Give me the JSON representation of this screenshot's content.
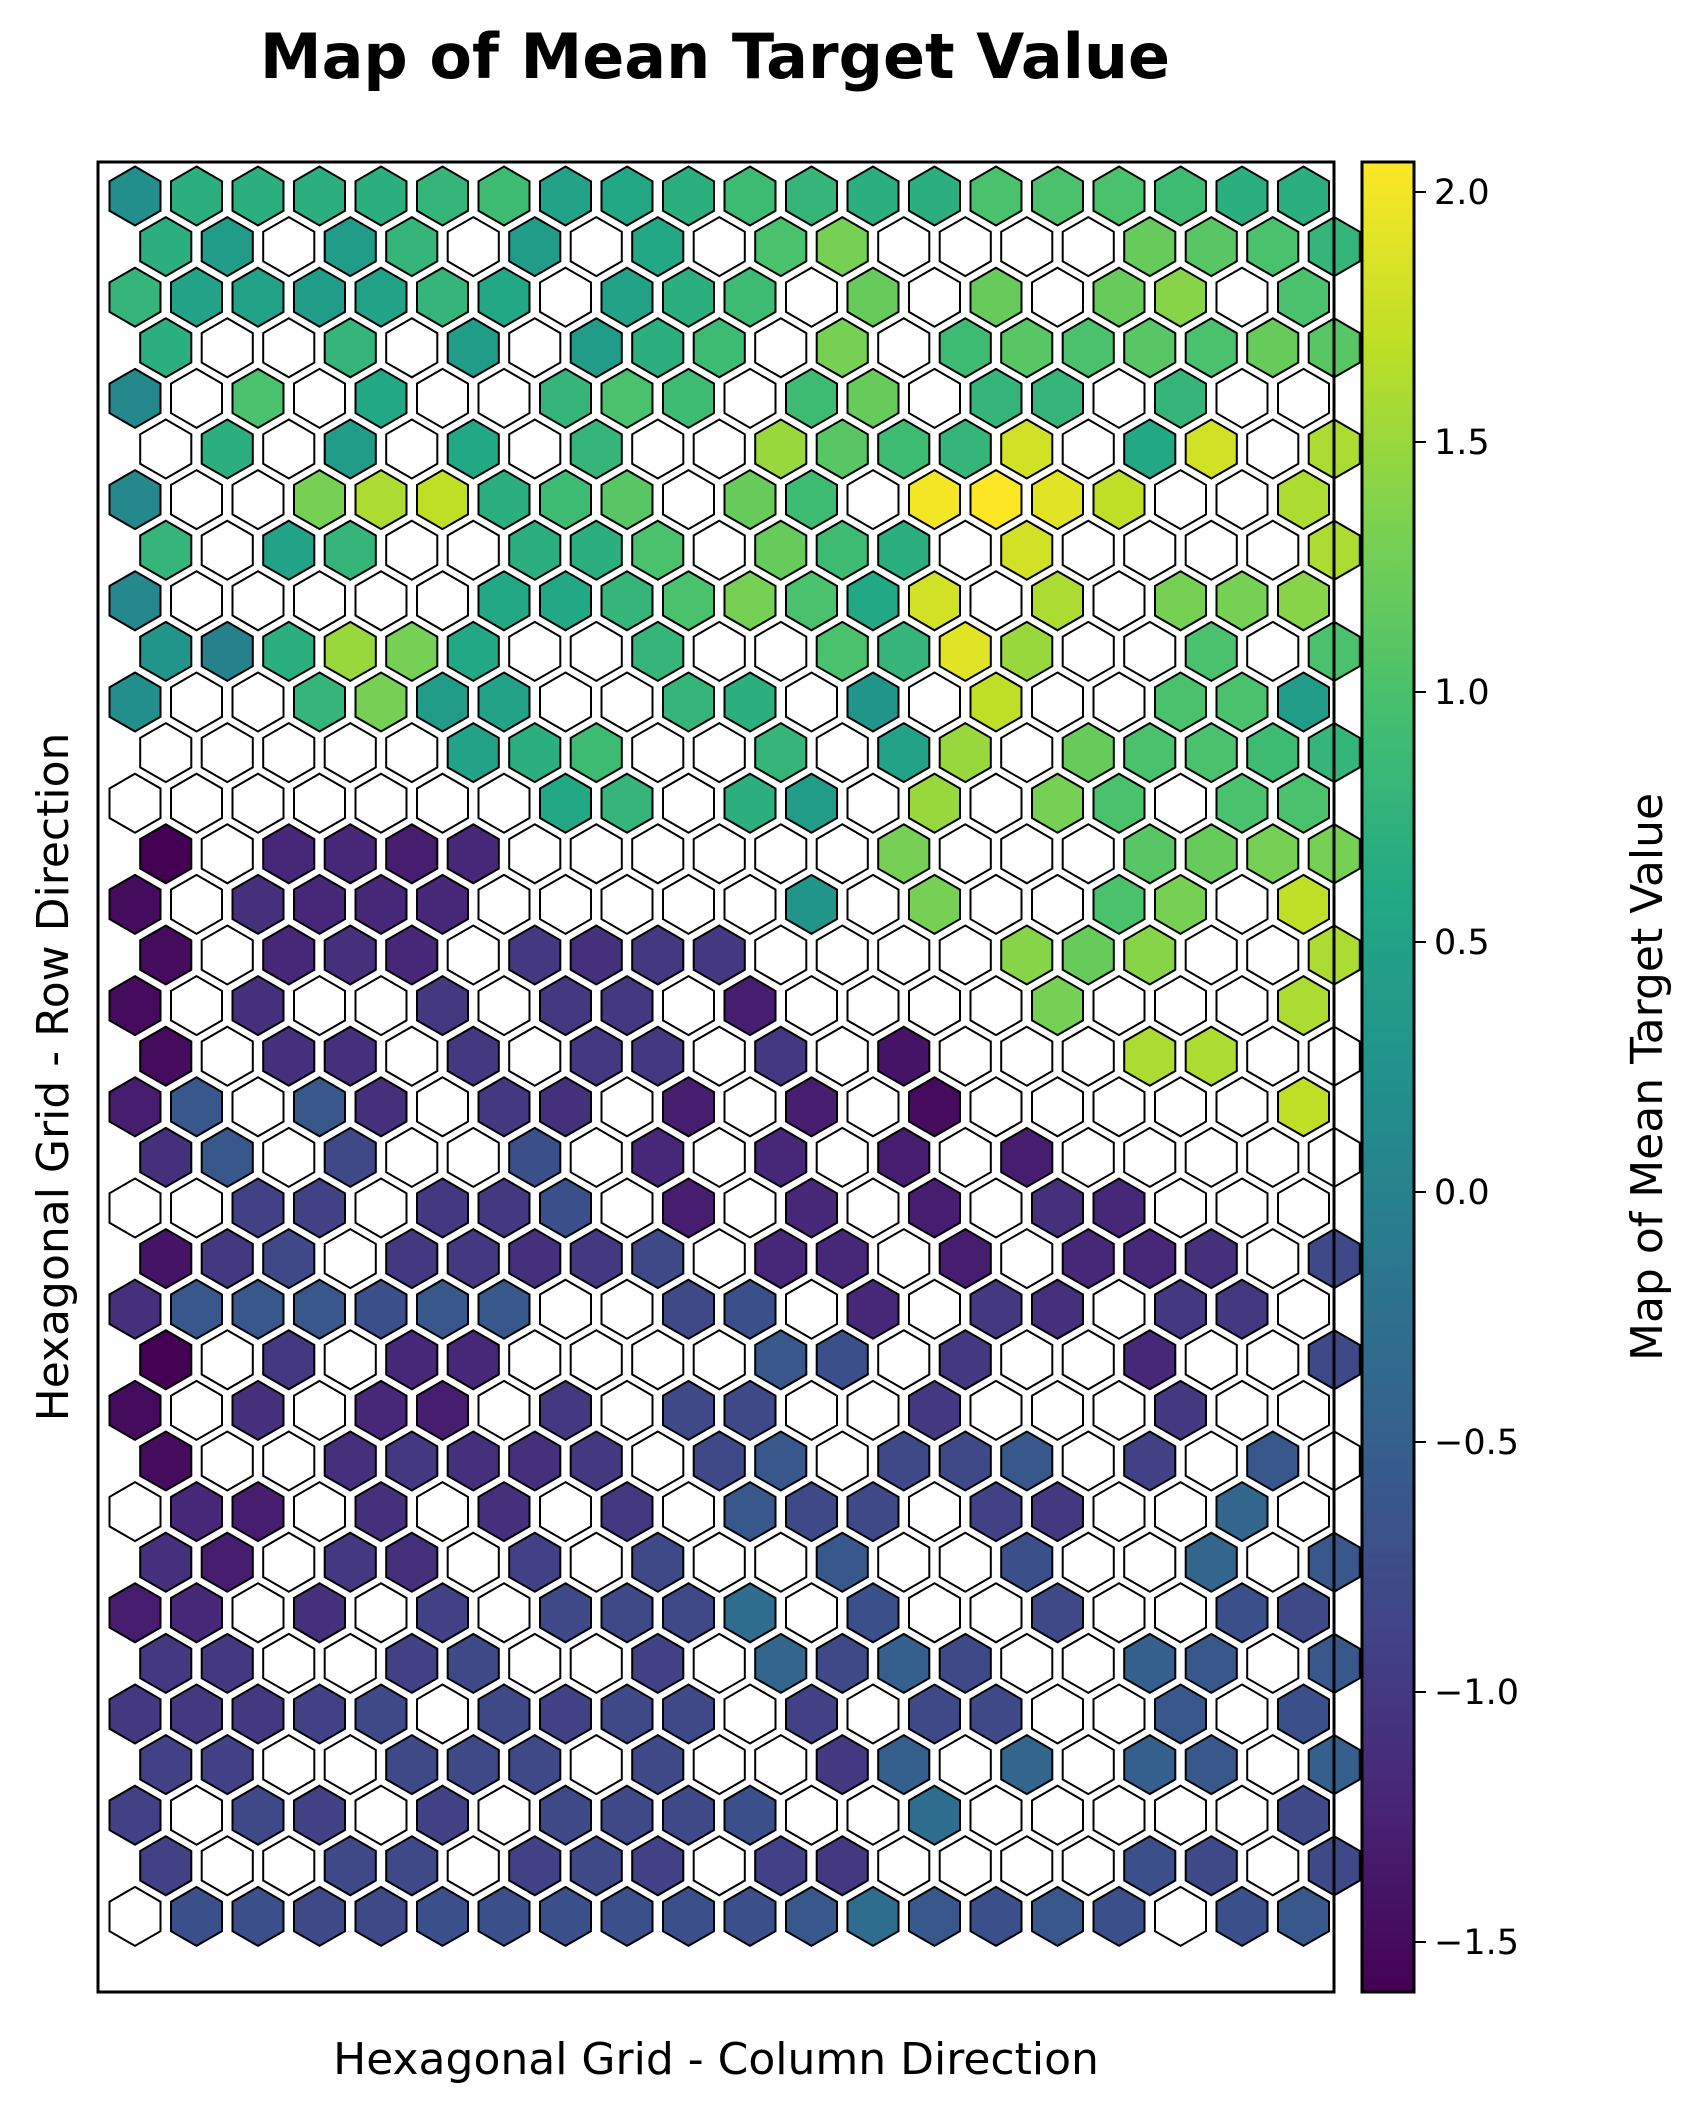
{
  "chart_data": {
    "type": "heatmap",
    "grid": "hexagonal",
    "title": "Map of Mean Target Value",
    "xlabel": "Hexagonal Grid - Column Direction",
    "ylabel": "Hexagonal Grid - Row Direction",
    "colorbar": {
      "label": "Map of Mean Target Value",
      "colormap": "viridis",
      "vmin": -1.6,
      "vmax": 2.06,
      "ticks": [
        -1.5,
        -1.0,
        -0.5,
        0.0,
        0.5,
        1.0,
        1.5,
        2.0
      ],
      "tick_labels": [
        "−1.5",
        "−1.0",
        "−0.5",
        "0.0",
        "0.5",
        "1.0",
        "1.5",
        "2.0"
      ]
    },
    "columns": 20,
    "row_legend": "Rows listed top to bottom, left to right; null = empty (white) cell; odd rows are offset half a cell to the right",
    "rows": [
      [
        0.2,
        0.7,
        0.7,
        0.7,
        0.7,
        0.8,
        0.9,
        0.5,
        0.6,
        0.7,
        0.9,
        0.8,
        0.7,
        0.7,
        1.0,
        1.0,
        1.0,
        0.9,
        0.7,
        0.7
      ],
      [
        0.7,
        0.4,
        null,
        0.4,
        0.8,
        null,
        0.4,
        null,
        0.6,
        null,
        1.0,
        1.3,
        null,
        null,
        null,
        null,
        1.2,
        1.1,
        1.0,
        0.8
      ],
      [
        0.8,
        0.5,
        0.5,
        0.4,
        0.5,
        0.8,
        0.6,
        null,
        0.5,
        0.7,
        0.9,
        null,
        1.2,
        null,
        1.2,
        null,
        1.2,
        1.4,
        null,
        1.0
      ],
      [
        0.7,
        null,
        null,
        0.8,
        null,
        0.4,
        null,
        0.4,
        0.7,
        0.9,
        null,
        1.3,
        null,
        0.9,
        1.1,
        1.0,
        1.1,
        1.0,
        1.2,
        1.1
      ],
      [
        0.1,
        null,
        1.0,
        null,
        0.6,
        null,
        null,
        0.8,
        1.0,
        0.9,
        null,
        0.9,
        1.2,
        null,
        0.8,
        0.8,
        null,
        0.8,
        null,
        null
      ],
      [
        null,
        0.7,
        null,
        0.4,
        null,
        0.6,
        null,
        0.8,
        null,
        null,
        1.5,
        1.1,
        0.9,
        0.8,
        1.8,
        null,
        0.6,
        1.8,
        null,
        1.6
      ],
      [
        0.1,
        null,
        null,
        1.3,
        1.6,
        1.7,
        0.7,
        0.9,
        1.1,
        null,
        1.2,
        0.9,
        null,
        2.0,
        2.1,
        1.9,
        1.7,
        null,
        null,
        1.6
      ],
      [
        0.8,
        null,
        0.5,
        0.8,
        null,
        null,
        0.7,
        0.7,
        1.0,
        null,
        1.2,
        0.9,
        0.7,
        null,
        1.8,
        null,
        null,
        null,
        null,
        1.6
      ],
      [
        0.1,
        null,
        null,
        null,
        null,
        null,
        0.6,
        0.6,
        0.8,
        1.0,
        1.3,
        1.0,
        0.6,
        1.8,
        null,
        1.6,
        null,
        1.3,
        1.3,
        1.4
      ],
      [
        0.3,
        0.0,
        0.7,
        1.5,
        1.3,
        0.6,
        null,
        null,
        0.8,
        null,
        null,
        1.0,
        0.8,
        1.9,
        1.5,
        null,
        null,
        1.0,
        null,
        1.0
      ],
      [
        0.2,
        null,
        null,
        0.8,
        1.3,
        0.4,
        0.5,
        null,
        null,
        0.8,
        0.7,
        null,
        0.3,
        null,
        1.7,
        null,
        null,
        1.0,
        1.0,
        0.4
      ],
      [
        null,
        null,
        null,
        null,
        null,
        0.5,
        0.7,
        0.9,
        null,
        null,
        0.8,
        null,
        0.5,
        1.5,
        null,
        1.2,
        1.0,
        1.0,
        0.9,
        0.8
      ],
      [
        null,
        null,
        null,
        null,
        null,
        null,
        null,
        0.6,
        0.8,
        null,
        0.7,
        0.4,
        null,
        1.5,
        null,
        1.3,
        1.0,
        null,
        1.0,
        1.0
      ],
      [
        -1.6,
        null,
        -1.2,
        -1.2,
        -1.3,
        -1.2,
        null,
        null,
        null,
        null,
        null,
        null,
        1.3,
        null,
        null,
        null,
        1.1,
        1.2,
        1.3,
        1.3
      ],
      [
        -1.5,
        null,
        -1.1,
        -1.2,
        -1.2,
        -1.2,
        null,
        null,
        null,
        null,
        null,
        0.3,
        null,
        1.3,
        null,
        null,
        1.0,
        1.3,
        null,
        1.7
      ],
      [
        -1.5,
        null,
        -1.2,
        -1.1,
        -1.2,
        null,
        -1.0,
        -1.1,
        -1.0,
        -1.0,
        null,
        null,
        null,
        null,
        1.4,
        1.2,
        1.4,
        null,
        null,
        1.6
      ],
      [
        -1.5,
        null,
        -1.1,
        null,
        null,
        -1.0,
        null,
        -1.0,
        -1.0,
        null,
        -1.3,
        null,
        null,
        null,
        null,
        1.3,
        null,
        null,
        null,
        1.6
      ],
      [
        -1.5,
        null,
        -1.1,
        -1.1,
        null,
        -1.0,
        null,
        -1.0,
        -1.0,
        null,
        -1.0,
        null,
        -1.4,
        null,
        null,
        null,
        1.6,
        1.6,
        null,
        null
      ],
      [
        -1.3,
        -0.6,
        null,
        -0.6,
        -1.1,
        null,
        -1.0,
        -1.1,
        null,
        -1.3,
        null,
        -1.3,
        null,
        -1.5,
        null,
        null,
        null,
        null,
        null,
        1.7
      ],
      [
        -1.1,
        -0.6,
        null,
        -0.8,
        null,
        null,
        -0.7,
        null,
        -1.2,
        null,
        -1.2,
        null,
        -1.3,
        null,
        -1.3,
        null,
        null,
        null,
        null,
        null
      ],
      [
        null,
        null,
        -0.9,
        -0.9,
        null,
        -1.0,
        -1.0,
        -0.7,
        null,
        -1.3,
        null,
        -1.2,
        null,
        -1.3,
        null,
        -1.1,
        -1.2,
        null,
        null,
        null
      ],
      [
        -1.4,
        -1.0,
        -0.8,
        null,
        -1.0,
        -1.0,
        -1.1,
        -1.0,
        -0.8,
        null,
        -1.2,
        -1.2,
        null,
        -1.3,
        null,
        -1.2,
        -1.2,
        -1.1,
        null,
        -0.8
      ],
      [
        -1.1,
        -0.6,
        -0.6,
        -0.6,
        -0.7,
        -0.6,
        -0.6,
        null,
        null,
        -0.8,
        -0.7,
        null,
        -1.2,
        null,
        -1.0,
        -1.1,
        null,
        -1.0,
        -1.0,
        null
      ],
      [
        -1.6,
        null,
        -1.0,
        null,
        -1.2,
        -1.2,
        null,
        null,
        null,
        null,
        -0.6,
        -0.7,
        null,
        -1.0,
        null,
        null,
        -1.2,
        null,
        null,
        -0.8
      ],
      [
        -1.5,
        null,
        -1.1,
        null,
        -1.2,
        -1.3,
        null,
        -1.0,
        null,
        -0.8,
        -0.8,
        null,
        null,
        -1.0,
        null,
        null,
        null,
        -1.0,
        null,
        null
      ],
      [
        -1.5,
        null,
        null,
        -1.1,
        -1.0,
        -1.1,
        -1.1,
        -1.0,
        null,
        -0.8,
        -0.6,
        null,
        -0.8,
        -0.8,
        -0.6,
        null,
        -0.9,
        null,
        -0.6,
        null
      ],
      [
        null,
        -1.2,
        -1.3,
        null,
        -1.1,
        null,
        -1.1,
        null,
        -1.0,
        null,
        -0.6,
        -0.8,
        -0.8,
        null,
        -0.9,
        -1.0,
        null,
        null,
        -0.4,
        null
      ],
      [
        -1.1,
        -1.3,
        null,
        -1.0,
        -1.1,
        null,
        -0.9,
        null,
        -0.8,
        null,
        null,
        -0.6,
        null,
        null,
        -0.7,
        null,
        null,
        -0.4,
        null,
        -0.6
      ],
      [
        -1.3,
        -1.2,
        null,
        -1.1,
        null,
        -0.9,
        null,
        -0.8,
        -0.8,
        -0.8,
        -0.3,
        null,
        -0.7,
        null,
        null,
        -0.8,
        null,
        null,
        -0.7,
        -0.8
      ],
      [
        -1.0,
        -1.0,
        null,
        null,
        -0.9,
        -0.8,
        null,
        null,
        -0.9,
        null,
        -0.4,
        -0.8,
        -0.5,
        -0.8,
        null,
        null,
        -0.5,
        -0.6,
        null,
        -0.6
      ],
      [
        -1.0,
        -1.0,
        -1.0,
        -0.9,
        -0.8,
        null,
        -0.8,
        -0.9,
        -0.8,
        -0.8,
        null,
        -0.9,
        null,
        -0.8,
        -0.8,
        null,
        null,
        -0.6,
        null,
        -0.7
      ],
      [
        -0.9,
        -0.9,
        null,
        null,
        -0.8,
        -0.8,
        -0.8,
        null,
        -0.8,
        null,
        null,
        -1.0,
        -0.5,
        null,
        -0.4,
        null,
        -0.5,
        -0.6,
        null,
        -0.5
      ],
      [
        -0.9,
        null,
        -0.8,
        -0.9,
        null,
        -0.9,
        null,
        -0.8,
        -0.8,
        -0.8,
        -0.7,
        null,
        null,
        -0.3,
        null,
        null,
        null,
        null,
        null,
        -0.8
      ],
      [
        -0.9,
        null,
        null,
        -0.8,
        -0.8,
        null,
        -0.9,
        -0.8,
        -0.9,
        null,
        -0.9,
        -1.0,
        null,
        null,
        null,
        null,
        -0.7,
        -0.8,
        null,
        -0.8
      ],
      [
        null,
        -0.7,
        -0.7,
        -0.8,
        -0.8,
        -0.7,
        -0.7,
        -0.7,
        -0.7,
        -0.7,
        -0.7,
        -0.6,
        -0.3,
        -0.6,
        -0.7,
        -0.6,
        -0.7,
        null,
        -0.7,
        -0.6
      ]
    ]
  }
}
